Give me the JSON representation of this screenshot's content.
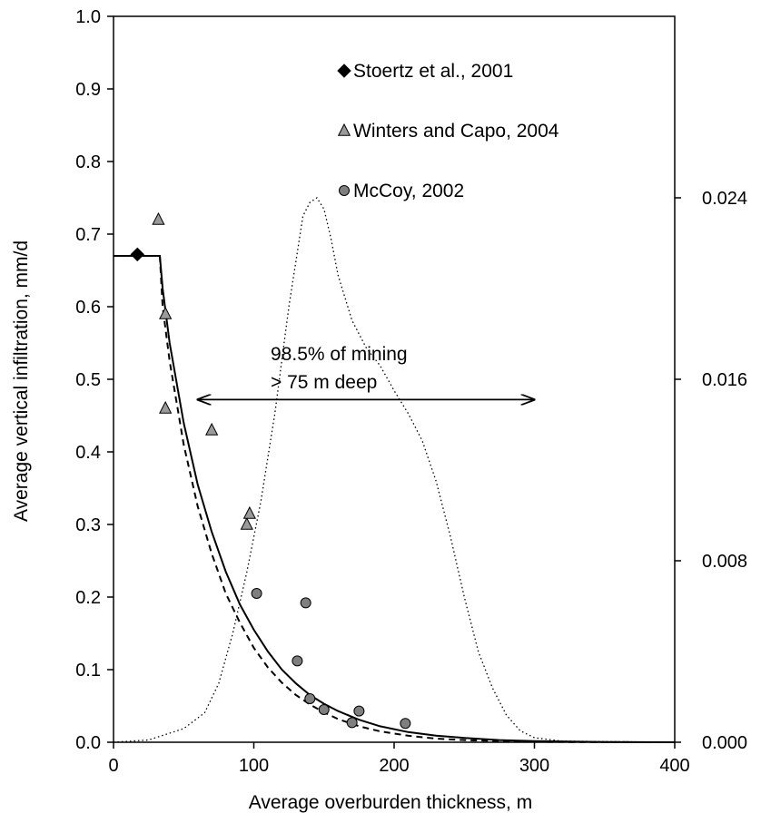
{
  "chart_data": {
    "type": "scatter",
    "xlabel": "Average overburden thickness, m",
    "ylabel": "Average vertical infiltration, mm/d",
    "xlim": [
      0,
      400
    ],
    "ylim": [
      0,
      1.0
    ],
    "y2lim": [
      0,
      0.032
    ],
    "x_ticks": [
      "0",
      "100",
      "200",
      "300",
      "400"
    ],
    "y_ticks": [
      "0.0",
      "0.1",
      "0.2",
      "0.3",
      "0.4",
      "0.5",
      "0.6",
      "0.7",
      "0.8",
      "0.9",
      "1.0"
    ],
    "y2_ticks": [
      "0.000",
      "0.008",
      "0.016",
      "0.024"
    ],
    "grid": false,
    "legend_position": "top-right",
    "series": [
      {
        "name": "Stoertz et al., 2001",
        "marker": "diamond",
        "color": "#000000",
        "points": [
          [
            17,
            0.672
          ]
        ]
      },
      {
        "name": "Winters and Capo, 2004",
        "marker": "triangle",
        "color": "#9a9a9a",
        "points": [
          [
            32,
            0.72
          ],
          [
            37,
            0.59
          ],
          [
            37,
            0.46
          ],
          [
            70,
            0.43
          ],
          [
            95,
            0.3
          ],
          [
            97,
            0.315
          ]
        ]
      },
      {
        "name": "McCoy, 2002",
        "marker": "circle",
        "color": "#7f7f7f",
        "points": [
          [
            102,
            0.205
          ],
          [
            131,
            0.112
          ],
          [
            137,
            0.192
          ],
          [
            140,
            0.06
          ],
          [
            150,
            0.045
          ],
          [
            170,
            0.027
          ],
          [
            175,
            0.043
          ],
          [
            208,
            0.026
          ]
        ]
      }
    ],
    "lines": [
      {
        "style": "solid",
        "axis": "left",
        "points": [
          [
            0,
            0.67
          ],
          [
            33,
            0.67
          ],
          [
            33,
            0.67
          ],
          [
            35,
            0.625
          ],
          [
            40,
            0.55
          ],
          [
            50,
            0.44
          ],
          [
            60,
            0.355
          ],
          [
            70,
            0.29
          ],
          [
            80,
            0.235
          ],
          [
            90,
            0.19
          ],
          [
            100,
            0.155
          ],
          [
            110,
            0.125
          ],
          [
            120,
            0.1
          ],
          [
            130,
            0.081
          ],
          [
            140,
            0.065
          ],
          [
            150,
            0.053
          ],
          [
            160,
            0.043
          ],
          [
            175,
            0.031
          ],
          [
            190,
            0.022
          ],
          [
            210,
            0.014
          ],
          [
            230,
            0.009
          ],
          [
            250,
            0.006
          ],
          [
            275,
            0.003
          ],
          [
            300,
            0.0015
          ],
          [
            350,
            0.0004
          ],
          [
            400,
            0.0
          ]
        ]
      },
      {
        "style": "dashed",
        "axis": "left",
        "points": [
          [
            33,
            0.67
          ],
          [
            35,
            0.6
          ],
          [
            40,
            0.525
          ],
          [
            50,
            0.41
          ],
          [
            60,
            0.325
          ],
          [
            70,
            0.26
          ],
          [
            80,
            0.205
          ],
          [
            90,
            0.165
          ],
          [
            100,
            0.13
          ],
          [
            110,
            0.103
          ],
          [
            120,
            0.082
          ],
          [
            130,
            0.065
          ],
          [
            140,
            0.052
          ],
          [
            150,
            0.041
          ],
          [
            160,
            0.032
          ],
          [
            175,
            0.022
          ],
          [
            190,
            0.015
          ],
          [
            210,
            0.009
          ],
          [
            230,
            0.005
          ],
          [
            250,
            0.003
          ],
          [
            275,
            0.0015
          ],
          [
            300,
            0.0006
          ],
          [
            350,
            0.0001
          ],
          [
            400,
            0.0
          ]
        ]
      },
      {
        "style": "dotted",
        "axis": "right",
        "points": [
          [
            0,
            0.0
          ],
          [
            25,
            0.0001
          ],
          [
            50,
            0.0006
          ],
          [
            65,
            0.0013
          ],
          [
            75,
            0.0026
          ],
          [
            85,
            0.0048
          ],
          [
            95,
            0.0075
          ],
          [
            105,
            0.0106
          ],
          [
            115,
            0.0145
          ],
          [
            125,
            0.0192
          ],
          [
            135,
            0.0232
          ],
          [
            140,
            0.0238
          ],
          [
            145,
            0.024
          ],
          [
            150,
            0.0235
          ],
          [
            155,
            0.0222
          ],
          [
            160,
            0.0206
          ],
          [
            170,
            0.0186
          ],
          [
            180,
            0.0174
          ],
          [
            190,
            0.0166
          ],
          [
            200,
            0.0155
          ],
          [
            210,
            0.0145
          ],
          [
            220,
            0.0133
          ],
          [
            230,
            0.0115
          ],
          [
            240,
            0.0091
          ],
          [
            250,
            0.0064
          ],
          [
            260,
            0.004
          ],
          [
            270,
            0.0024
          ],
          [
            280,
            0.0012
          ],
          [
            290,
            0.0005
          ],
          [
            300,
            0.0002
          ],
          [
            320,
            5e-05
          ],
          [
            400,
            0.0
          ]
        ]
      }
    ],
    "annotations": [
      {
        "text": "98.5% of mining",
        "line": 1
      },
      {
        "text": "> 75 m deep",
        "line": 2
      },
      {
        "type": "double-arrow",
        "x": [
          60,
          300
        ],
        "y": 0.472
      }
    ]
  }
}
